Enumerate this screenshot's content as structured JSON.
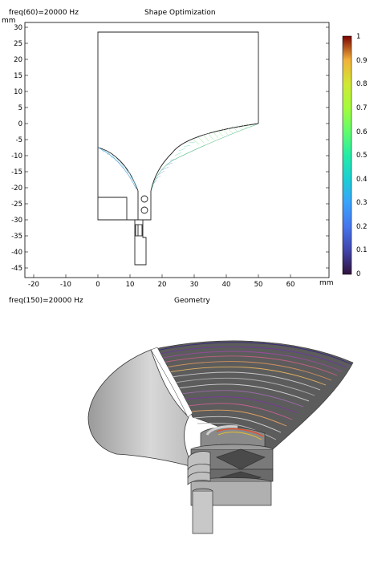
{
  "top_panel": {
    "freq_label": "freq(60)=20000 Hz",
    "title": "Shape Optimization",
    "y_unit": "mm",
    "x_unit": "mm",
    "y_ticks": [
      "30",
      "25",
      "20",
      "15",
      "10",
      "5",
      "0",
      "-5",
      "-10",
      "-15",
      "-20",
      "-25",
      "-30",
      "-35",
      "-40",
      "-45"
    ],
    "x_ticks": [
      "-20",
      "-10",
      "0",
      "10",
      "20",
      "30",
      "40",
      "50",
      "60"
    ],
    "colorbar": {
      "ticks": [
        "1",
        "0.9",
        "0.8",
        "0.7",
        "0.6",
        "0.5",
        "0.4",
        "0.3",
        "0.2",
        "0.1",
        "0"
      ],
      "colormap": "rainbow"
    }
  },
  "bottom_panel": {
    "freq_label": "freq(150)=20000 Hz",
    "title": "Geometry"
  },
  "colors": {
    "outline": "#000000",
    "grid": "#d9d9d9",
    "geometry_gray": "#a8a8a8",
    "geometry_dark": "#555555"
  }
}
